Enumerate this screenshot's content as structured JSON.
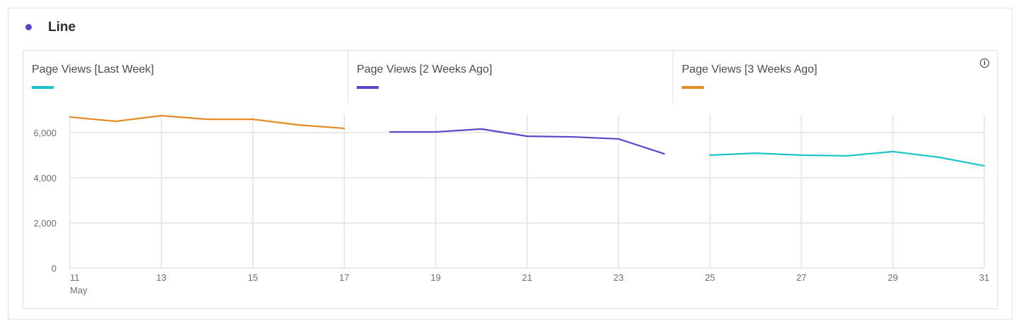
{
  "card": {
    "title": "Line"
  },
  "colors": {
    "last_week": "#1bc4c9",
    "two_weeks": "#5b45c9",
    "three_weeks": "#e48a23",
    "title_dot": "#5b45c9"
  },
  "chart_data": {
    "type": "line",
    "title": "Line",
    "legend": [
      "Page Views [Last Week]",
      "Page Views [2 Weeks Ago]",
      "Page Views [3 Weeks Ago]"
    ],
    "y_ticks": [
      "0",
      "2,000",
      "4,000",
      "6,000"
    ],
    "ylim": [
      0,
      7000
    ],
    "x_ticks": [
      "11",
      "13",
      "15",
      "17",
      "19",
      "21",
      "23",
      "25",
      "27",
      "29",
      "31"
    ],
    "x_sublabel": "May",
    "series": [
      {
        "name": "Page Views [3 Weeks Ago]",
        "days": [
          11,
          12,
          13,
          14,
          15,
          16,
          17
        ],
        "values": [
          6690,
          6500,
          6750,
          6590,
          6590,
          6340,
          6190
        ]
      },
      {
        "name": "Page Views [2 Weeks Ago]",
        "days": [
          18,
          19,
          20,
          21,
          22,
          23,
          24
        ],
        "values": [
          6030,
          6030,
          6160,
          5840,
          5810,
          5720,
          5060
        ]
      },
      {
        "name": "Page Views [Last Week]",
        "days": [
          25,
          26,
          27,
          28,
          29,
          30,
          31
        ],
        "values": [
          5000,
          5090,
          5000,
          4970,
          5160,
          4910,
          4530
        ]
      }
    ]
  }
}
